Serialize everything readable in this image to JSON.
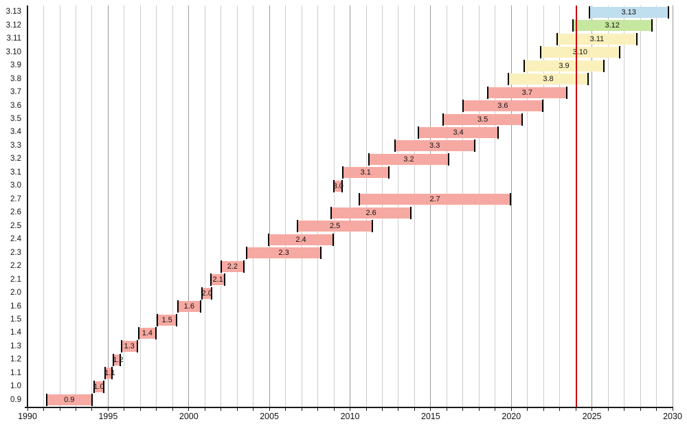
{
  "chart_data": {
    "type": "gantt",
    "x_axis": {
      "min": 1990,
      "max": 2030,
      "gridline_every": 1,
      "label_every": 5,
      "tick_labels": [
        "1990",
        "1995",
        "2000",
        "2005",
        "2010",
        "2015",
        "2020",
        "2025",
        "2030"
      ]
    },
    "y_axis": {
      "rows": [
        "3.13",
        "3.12",
        "3.11",
        "3.10",
        "3.9",
        "3.8",
        "3.7",
        "3.6",
        "3.5",
        "3.4",
        "3.3",
        "3.2",
        "3.1",
        "3.0",
        "2.7",
        "2.6",
        "2.5",
        "2.4",
        "2.3",
        "2.2",
        "2.1",
        "2.0",
        "1.6",
        "1.5",
        "1.4",
        "1.3",
        "1.2",
        "1.1",
        "1.0",
        "0.9"
      ]
    },
    "bars": [
      {
        "label": "3.13",
        "start": 2024.78,
        "end": 2029.78,
        "status": "feature"
      },
      {
        "label": "3.12",
        "start": 2023.76,
        "end": 2028.76,
        "status": "bugfix"
      },
      {
        "label": "3.11",
        "start": 2022.81,
        "end": 2027.81,
        "status": "security"
      },
      {
        "label": "3.10",
        "start": 2021.76,
        "end": 2026.76,
        "status": "security"
      },
      {
        "label": "3.9",
        "start": 2020.77,
        "end": 2025.77,
        "status": "security"
      },
      {
        "label": "3.8",
        "start": 2019.79,
        "end": 2024.79,
        "status": "security"
      },
      {
        "label": "3.7",
        "start": 2018.48,
        "end": 2023.48,
        "status": "end_of_life"
      },
      {
        "label": "3.6",
        "start": 2016.97,
        "end": 2021.98,
        "status": "end_of_life"
      },
      {
        "label": "3.5",
        "start": 2015.72,
        "end": 2020.73,
        "status": "end_of_life"
      },
      {
        "label": "3.4",
        "start": 2014.21,
        "end": 2019.22,
        "status": "end_of_life"
      },
      {
        "label": "3.3",
        "start": 2012.74,
        "end": 2017.76,
        "status": "end_of_life"
      },
      {
        "label": "3.2",
        "start": 2011.14,
        "end": 2016.14,
        "status": "end_of_life"
      },
      {
        "label": "3.1",
        "start": 2009.49,
        "end": 2012.45,
        "status": "end_of_life"
      },
      {
        "label": "3.0",
        "start": 2008.94,
        "end": 2009.56,
        "status": "end_of_life"
      },
      {
        "label": "2.7",
        "start": 2010.53,
        "end": 2020.01,
        "status": "end_of_life"
      },
      {
        "label": "2.6",
        "start": 2008.78,
        "end": 2013.83,
        "status": "end_of_life"
      },
      {
        "label": "2.5",
        "start": 2006.71,
        "end": 2011.42,
        "status": "end_of_life"
      },
      {
        "label": "2.4",
        "start": 2004.91,
        "end": 2009.0,
        "status": "end_of_life"
      },
      {
        "label": "2.3",
        "start": 2003.54,
        "end": 2008.24,
        "status": "end_of_life"
      },
      {
        "label": "2.2",
        "start": 2001.97,
        "end": 2003.45,
        "status": "end_of_life"
      },
      {
        "label": "2.1",
        "start": 2001.32,
        "end": 2002.29,
        "status": "end_of_life"
      },
      {
        "label": "2.0",
        "start": 2000.79,
        "end": 2001.47,
        "status": "end_of_life"
      },
      {
        "label": "1.6",
        "start": 1999.28,
        "end": 2000.77,
        "status": "end_of_life"
      },
      {
        "label": "1.5",
        "start": 1998.01,
        "end": 1999.3,
        "status": "end_of_life"
      },
      {
        "label": "1.4",
        "start": 1996.84,
        "end": 1998.01,
        "status": "end_of_life"
      },
      {
        "label": "1.3",
        "start": 1995.78,
        "end": 1996.84,
        "status": "end_of_life"
      },
      {
        "label": "1.2",
        "start": 1995.29,
        "end": 1995.78,
        "status": "end_of_life"
      },
      {
        "label": "1.1",
        "start": 1994.79,
        "end": 1995.29,
        "status": "end_of_life"
      },
      {
        "label": "1.0",
        "start": 1994.07,
        "end": 1994.79,
        "status": "end_of_life"
      },
      {
        "label": "0.9",
        "start": 1991.13,
        "end": 1994.05,
        "status": "end_of_life"
      }
    ],
    "status_colors": {
      "end_of_life": "#f6a9a2",
      "security": "#faf0bb",
      "bugfix": "#c6e79f",
      "feature": "#bfdeee"
    },
    "cap_color": "#000000",
    "today_line": {
      "year": 2024.04,
      "color": "#cc0000"
    },
    "grid": {
      "minor_color": "#cccccc",
      "major_color": "#999999",
      "axis_color": "#1a1a1a",
      "text_color": "#111111"
    },
    "legend": "none"
  }
}
